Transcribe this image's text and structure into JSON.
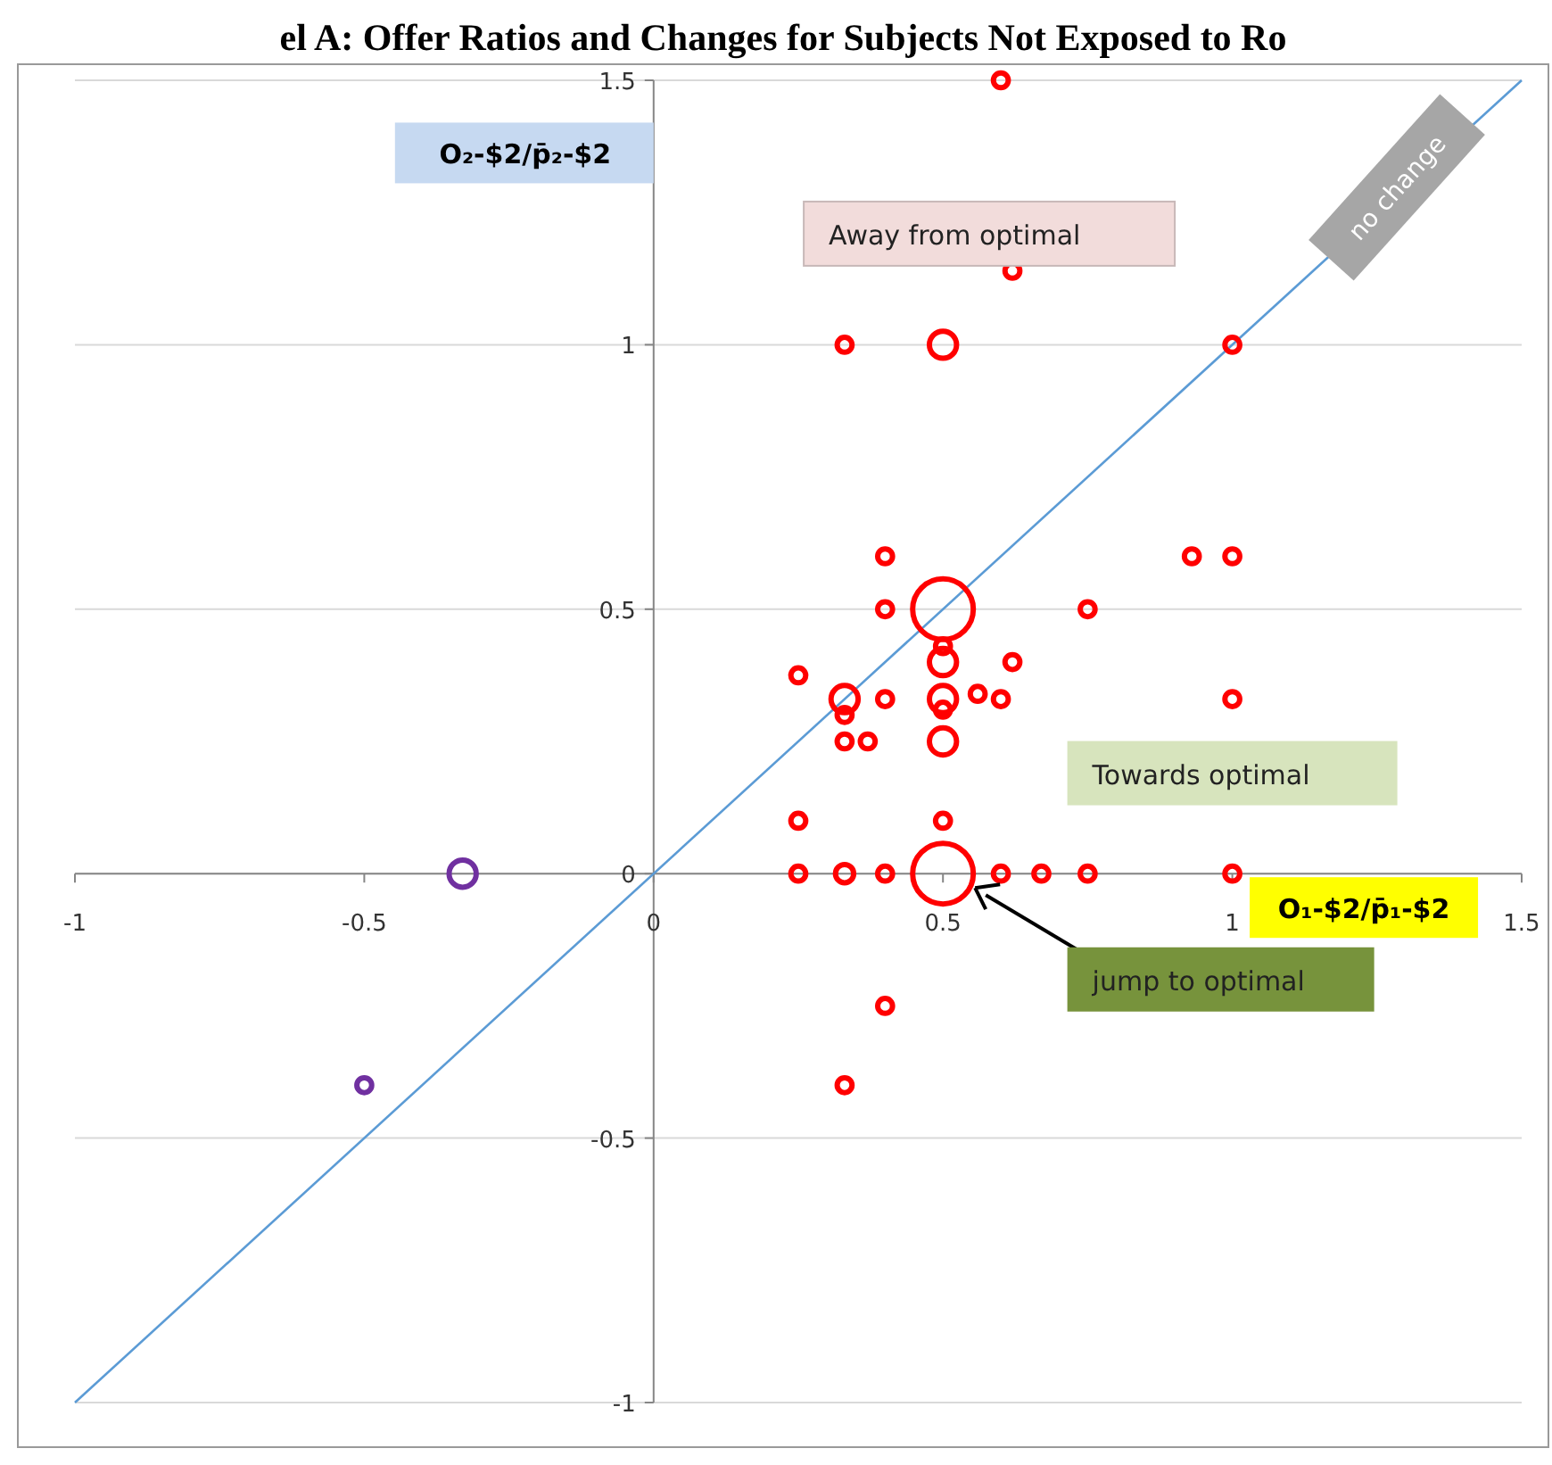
{
  "chart_data": {
    "type": "bubble",
    "title": "el A: Offer Ratios and Changes for Subjects Not Exposed to Ro",
    "xlabel": "O₁-$2/p̄₁-$2",
    "ylabel": "O₂-$2/p̄₂-$2",
    "xlim": [
      -1,
      1.5
    ],
    "xticks": [
      -1,
      -0.5,
      0,
      0.5,
      1,
      1.5
    ],
    "ylim": [
      -1,
      1.5
    ],
    "yticks": [
      -1,
      -0.5,
      0,
      0.5,
      1,
      1.5
    ],
    "grid": "y",
    "marker": "circle",
    "annotations": [
      "Away from optimal",
      "Towards optimal",
      "jump to optimal"
    ],
    "series": [
      {
        "color": "#ff0000",
        "x": [
          0.25,
          0.33,
          0.4,
          0.5,
          0.6,
          0.67,
          0.75,
          1,
          0.25,
          0.5,
          0.33,
          0.37,
          0.5,
          0.33,
          0.5,
          0.33,
          0.4,
          0.5,
          0.56,
          0.6,
          1,
          0.25,
          0.5,
          0.62,
          0.5,
          0.4,
          0.5,
          0.75,
          0.4,
          0.93,
          1,
          0.33,
          0.5,
          1,
          0.62,
          0.6,
          0.4,
          0.33
        ],
        "values": [
          0,
          0,
          0,
          0,
          0,
          0,
          0,
          0,
          0.1,
          0.1,
          0.25,
          0.25,
          0.25,
          0.3,
          0.31,
          0.33,
          0.33,
          0.33,
          0.34,
          0.33,
          0.33,
          0.375,
          0.4,
          0.4,
          0.43,
          0.5,
          0.5,
          0.5,
          0.6,
          0.6,
          0.6,
          1,
          1,
          1,
          1.14,
          1.5,
          -0.25,
          -0.4
        ],
        "sizes": [
          0.06,
          0.09,
          0.06,
          1,
          0.06,
          0.06,
          0.06,
          0.06,
          0.06,
          0.06,
          0.06,
          0.06,
          0.2,
          0.06,
          0.06,
          0.2,
          0.06,
          0.2,
          0.06,
          0.06,
          0.06,
          0.06,
          0.2,
          0.06,
          0.06,
          0.06,
          1,
          0.06,
          0.06,
          0.06,
          0.06,
          0.06,
          0.2,
          0.06,
          0.06,
          0.06,
          0.06,
          0.06
        ]
      },
      {
        "color": "#7030a0",
        "x": [
          -0.33,
          -0.5
        ],
        "values": [
          0,
          -0.4
        ],
        "sizes": [
          0.2,
          0.06
        ]
      },
      {
        "name": "no change",
        "type": "line",
        "marker": "none",
        "color": "#5b9bd5",
        "x": [
          -1,
          1.5
        ],
        "values": [
          -1,
          1.5
        ]
      }
    ]
  }
}
